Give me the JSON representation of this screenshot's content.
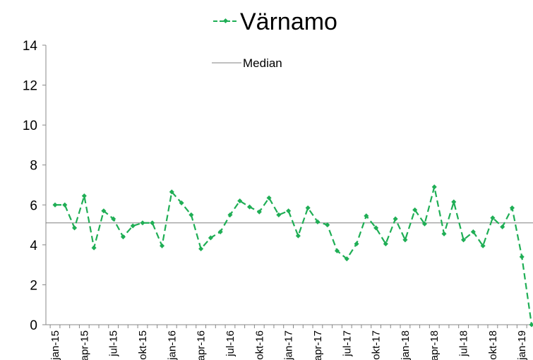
{
  "chart_data": {
    "type": "line",
    "categories": [
      "jan-15",
      null,
      null,
      "apr-15",
      null,
      null,
      "jul-15",
      null,
      null,
      "okt-15",
      null,
      null,
      "jan-16",
      null,
      null,
      "apr-16",
      null,
      null,
      "jul-16",
      null,
      null,
      "okt-16",
      null,
      null,
      "jan-17",
      null,
      null,
      "apr-17",
      null,
      null,
      "jul-17",
      null,
      null,
      "okt-17",
      null,
      null,
      "jan-18",
      null,
      null,
      "apr-18",
      null,
      null,
      "jul-18",
      null,
      null,
      "okt-18",
      null,
      null,
      "jan-19",
      null
    ],
    "series": [
      {
        "name": "Värnamo",
        "color": "#1fae55",
        "dashed": true,
        "marker": "diamond",
        "values": [
          6.0,
          6.0,
          4.85,
          6.45,
          3.85,
          5.7,
          5.3,
          4.4,
          4.95,
          5.1,
          5.1,
          3.95,
          6.65,
          6.1,
          5.5,
          3.8,
          4.35,
          4.65,
          5.5,
          6.2,
          5.9,
          5.65,
          6.35,
          5.5,
          5.7,
          4.45,
          5.85,
          5.15,
          5.0,
          3.7,
          3.3,
          4.05,
          5.45,
          4.85,
          4.05,
          5.3,
          4.25,
          5.75,
          5.05,
          6.9,
          4.55,
          6.15,
          4.25,
          4.65,
          3.95,
          5.35,
          4.9,
          5.85,
          3.4,
          0
        ]
      }
    ],
    "median": {
      "name": "Median",
      "value": 5.1,
      "color": "#808080"
    },
    "ylim": [
      0,
      14
    ],
    "yticks": [
      0,
      2,
      4,
      6,
      8,
      10,
      12,
      14
    ],
    "grid": false
  }
}
